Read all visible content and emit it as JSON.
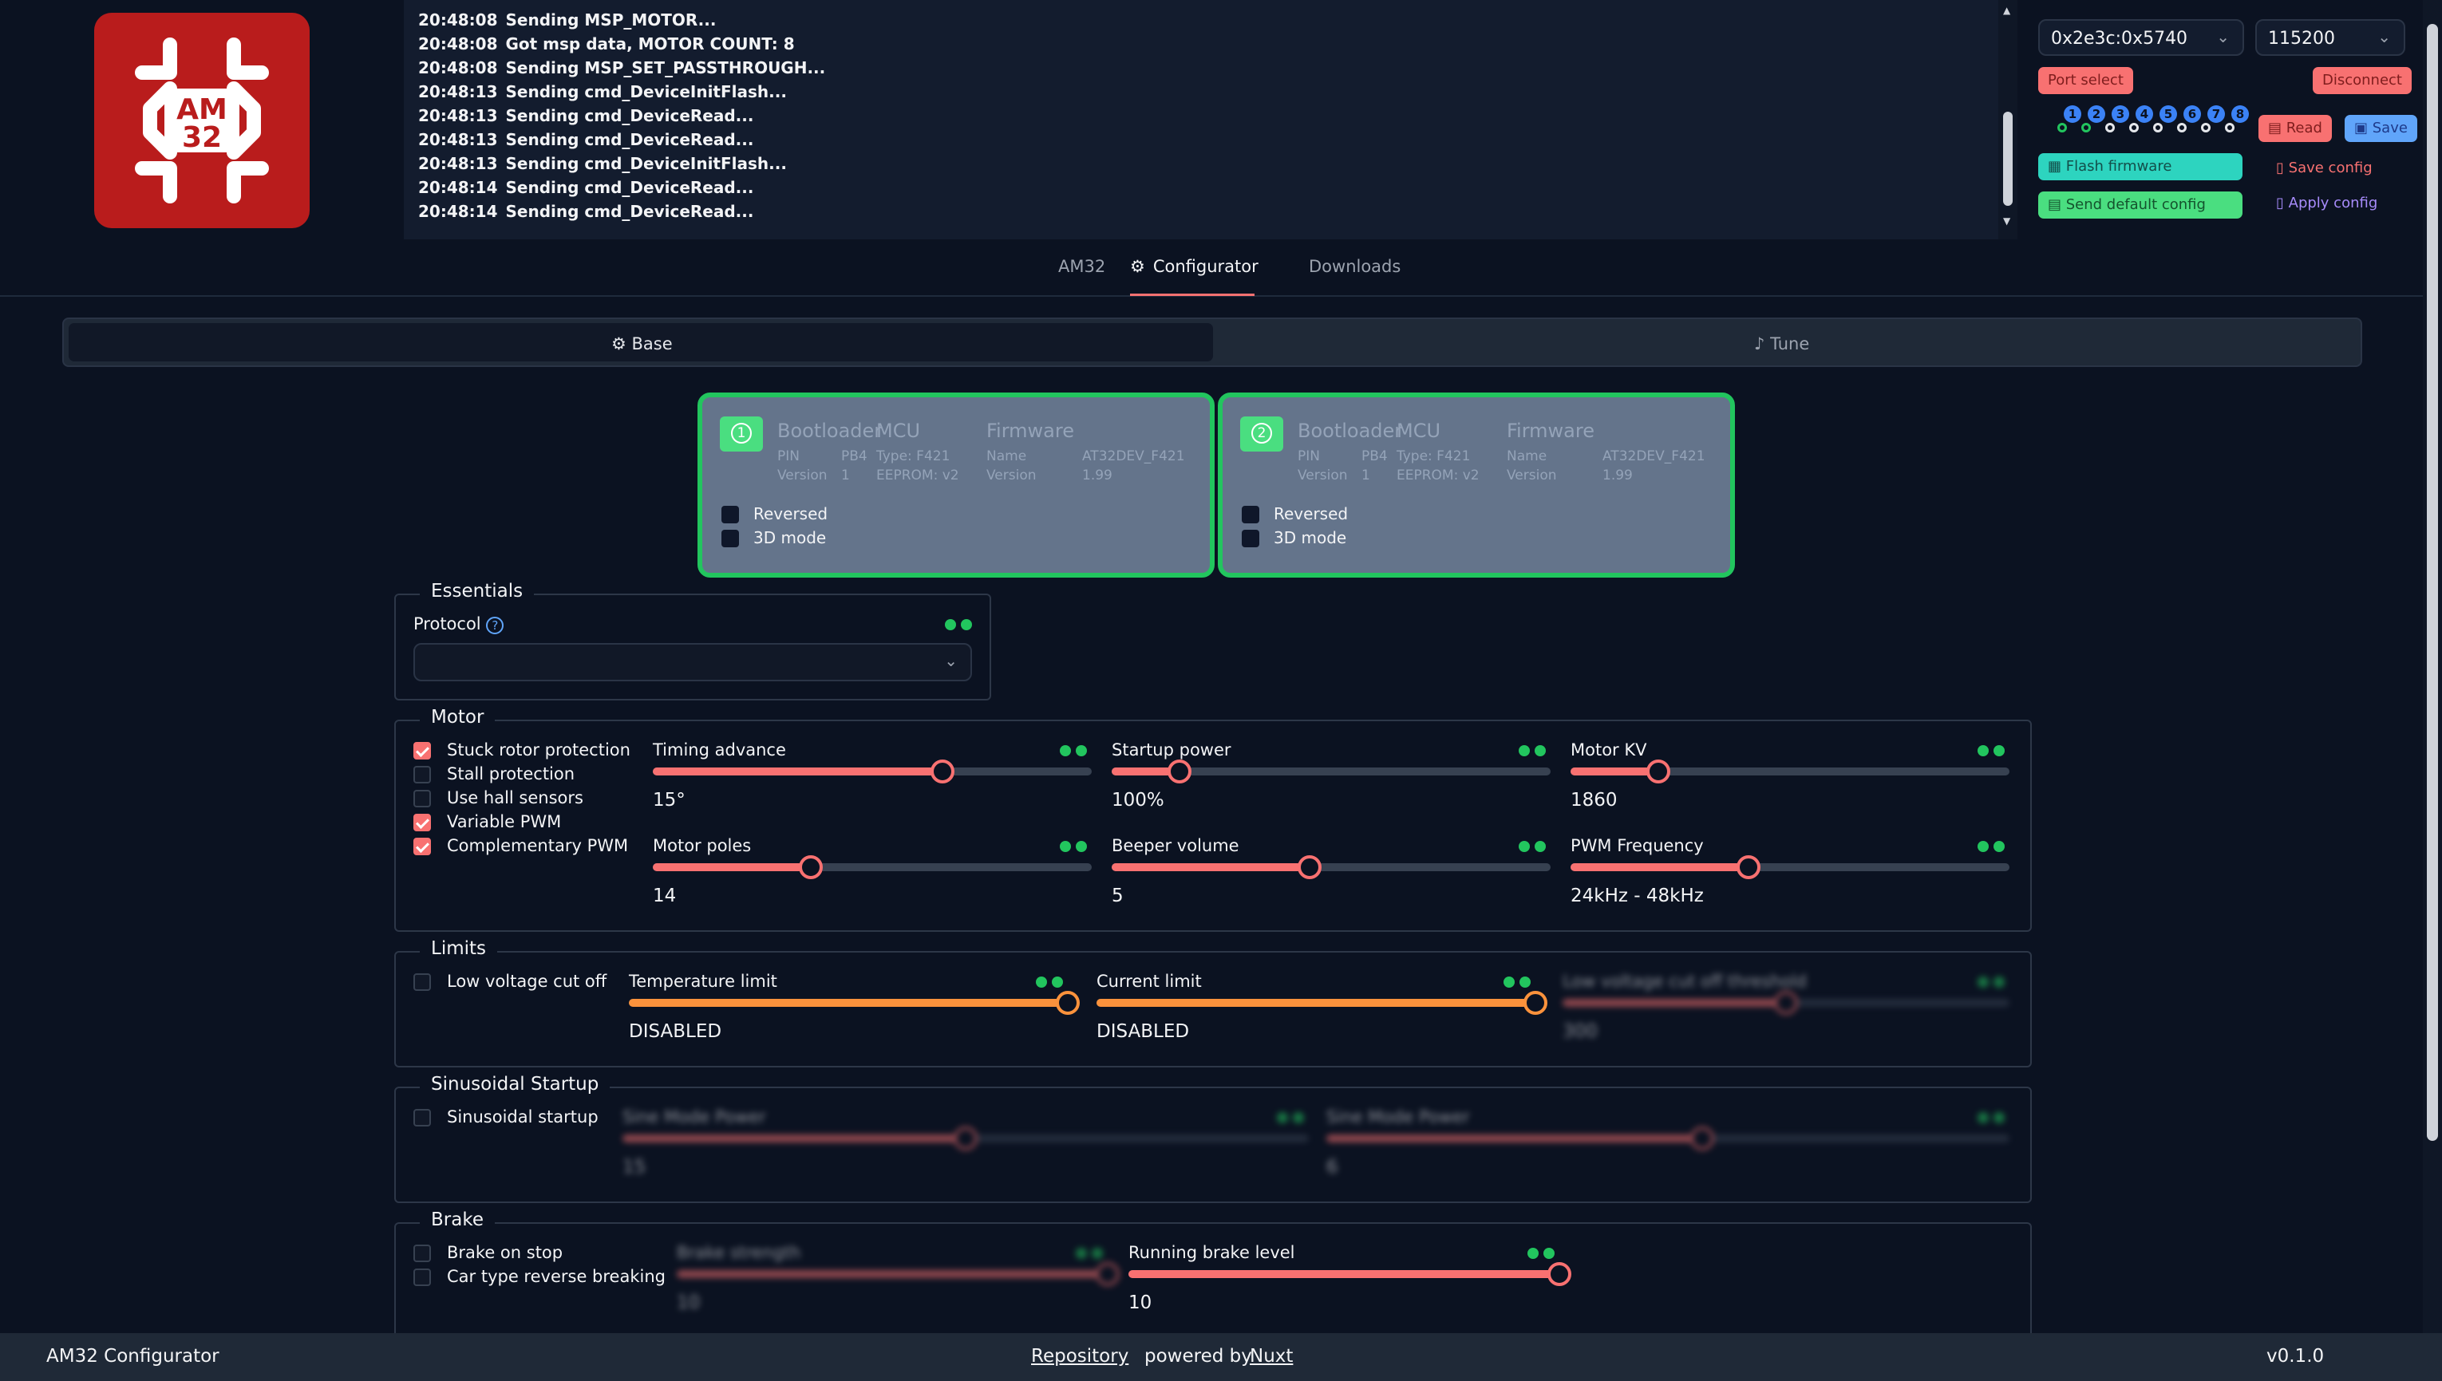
{
  "log": {
    "lines": [
      {
        "time": "20:48:08",
        "msg": "Sending MSP_MOTOR..."
      },
      {
        "time": "20:48:08",
        "msg": "Got msp data, MOTOR COUNT: 8"
      },
      {
        "time": "20:48:08",
        "msg": "Sending MSP_SET_PASSTHROUGH..."
      },
      {
        "time": "20:48:13",
        "msg": "Sending cmd_DeviceInitFlash..."
      },
      {
        "time": "20:48:13",
        "msg": "Sending cmd_DeviceRead..."
      },
      {
        "time": "20:48:13",
        "msg": "Sending cmd_DeviceRead..."
      },
      {
        "time": "20:48:13",
        "msg": "Sending cmd_DeviceInitFlash..."
      },
      {
        "time": "20:48:14",
        "msg": "Sending cmd_DeviceRead..."
      },
      {
        "time": "20:48:14",
        "msg": "Sending cmd_DeviceRead..."
      }
    ]
  },
  "logo": {
    "text_line1": "AM",
    "text_line2": "32"
  },
  "connection": {
    "port": "0x2e3c:0x5740",
    "baud": "115200",
    "port_select_label": "Port select",
    "disconnect_label": "Disconnect",
    "motors": [
      "1",
      "2",
      "3",
      "4",
      "5",
      "6",
      "7",
      "8"
    ],
    "read_label": "Read",
    "save_label": "Save",
    "flash_label": "Flash firmware",
    "save_config_label": "Save config",
    "send_default_label": "Send default config",
    "apply_config_label": "Apply config"
  },
  "nav": {
    "tabs": [
      "AM32",
      "Configurator",
      "Downloads"
    ],
    "active": "Configurator"
  },
  "subtabs": {
    "base": "Base",
    "tune": "Tune"
  },
  "escs": [
    {
      "index": "1",
      "bootloader": "Bootloader",
      "pin_label": "PIN",
      "pin": "PB4",
      "version_label": "Version",
      "bl_version": "1",
      "mcu": "MCU",
      "mcu_type": "Type: F421",
      "eeprom": "EEPROM: v2",
      "firmware": "Firmware",
      "name_label": "Name",
      "fw_name": "AT32DEV_F421",
      "fw_version": "1.99",
      "reversed": "Reversed",
      "mode3d": "3D mode"
    },
    {
      "index": "2",
      "bootloader": "Bootloader",
      "pin_label": "PIN",
      "pin": "PB4",
      "version_label": "Version",
      "bl_version": "1",
      "mcu": "MCU",
      "mcu_type": "Type: F421",
      "eeprom": "EEPROM: v2",
      "firmware": "Firmware",
      "name_label": "Name",
      "fw_name": "AT32DEV_F421",
      "fw_version": "1.99",
      "reversed": "Reversed",
      "mode3d": "3D mode"
    }
  ],
  "essentials": {
    "title": "Essentials",
    "protocol_label": "Protocol",
    "protocol_value": ""
  },
  "motor": {
    "title": "Motor",
    "checks": [
      {
        "label": "Stuck rotor protection",
        "checked": true
      },
      {
        "label": "Stall protection",
        "checked": false
      },
      {
        "label": "Use hall sensors",
        "checked": false
      },
      {
        "label": "Variable PWM",
        "checked": true
      },
      {
        "label": "Complementary PWM",
        "checked": true
      }
    ],
    "sliders": [
      {
        "label": "Timing advance",
        "value": "15°",
        "fraction": 0.66
      },
      {
        "label": "Startup power",
        "value": "100%",
        "fraction": 0.155
      },
      {
        "label": "Motor KV",
        "value": "1860",
        "fraction": 0.2
      },
      {
        "label": "Motor poles",
        "value": "14",
        "fraction": 0.36
      },
      {
        "label": "Beeper volume",
        "value": "5",
        "fraction": 0.45
      },
      {
        "label": "PWM Frequency",
        "value": "24kHz - 48kHz",
        "fraction": 0.405
      }
    ]
  },
  "limits": {
    "title": "Limits",
    "low_voltage_label": "Low voltage cut off",
    "sliders": [
      {
        "label": "Temperature limit",
        "value": "DISABLED",
        "fraction": 1.0
      },
      {
        "label": "Current limit",
        "value": "DISABLED",
        "fraction": 1.0
      },
      {
        "label": "Low voltage cut off threshold",
        "value": "300",
        "fraction": 0.5
      }
    ]
  },
  "sinusoidal": {
    "title": "Sinusoidal Startup",
    "check_label": "Sinusoidal startup",
    "sliders": [
      {
        "label": "Sine Mode Power",
        "value": "15",
        "fraction": 0.5
      },
      {
        "label": "Sine Mode Power",
        "value": "6",
        "fraction": 0.55
      }
    ]
  },
  "brake": {
    "title": "Brake",
    "checks": [
      "Brake on stop",
      "Car type reverse breaking"
    ],
    "sliders": [
      {
        "label": "Brake strength",
        "value": "10",
        "fraction": 1.0
      },
      {
        "label": "Running brake level",
        "value": "10",
        "fraction": 1.0
      }
    ]
  },
  "footer": {
    "app": "AM32 Configurator",
    "repository": "Repository",
    "powered": "powered by",
    "nuxt": "Nuxt",
    "version": "v0.1.0"
  },
  "colors": {
    "accent": "#f87171",
    "good": "#22c55e",
    "bg": "#0b1221"
  }
}
